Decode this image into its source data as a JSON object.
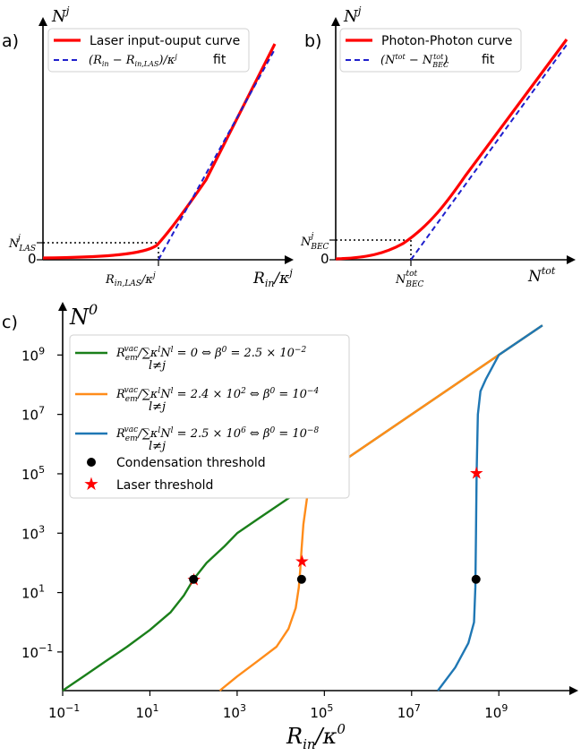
{
  "colors": {
    "red": "#ff0000",
    "blue": "#1f1fcc",
    "green": "#1a7f1a",
    "orange": "#ff8c1a",
    "steel": "#1f77b4",
    "black": "#000000"
  },
  "chart_data": [
    {
      "type": "line",
      "panel_label": "a)",
      "ylabel": "N^j",
      "xlabel": "R_in/κ^j",
      "x_tick_labels": [
        "R_in,LAS/κ^j"
      ],
      "y_tick_labels": [
        "0",
        "N^j_LAS"
      ],
      "legend_placement": "top-left",
      "series": [
        {
          "name": "Laser input-ouput curve",
          "style": "solid",
          "color": "red"
        },
        {
          "name": "(R_in − R_in,LAS)/κ^j fit",
          "style": "dashed",
          "color": "blue"
        }
      ]
    },
    {
      "type": "line",
      "panel_label": "b)",
      "ylabel": "N^j",
      "xlabel": "N^tot",
      "x_tick_labels": [
        "N^tot_BEC"
      ],
      "y_tick_labels": [
        "0",
        "N^j_BEC"
      ],
      "legend_placement": "top-left",
      "series": [
        {
          "name": "Photon-Photon curve",
          "style": "solid",
          "color": "red"
        },
        {
          "name": "(N^tot − N^tot_BEC) fit",
          "style": "dashed",
          "color": "blue"
        }
      ]
    },
    {
      "type": "line",
      "panel_label": "c)",
      "ylabel": "N^0",
      "xlabel": "R_in/κ^0",
      "x_scale": "log",
      "y_scale": "log",
      "xlim": [
        0.1,
        50000000000.0
      ],
      "ylim": [
        0.005,
        50000000000.0
      ],
      "x_ticks": [
        {
          "base": "10",
          "exp": "−1",
          "value": 0.1
        },
        {
          "base": "10",
          "exp": "1",
          "value": 10
        },
        {
          "base": "10",
          "exp": "3",
          "value": 1000
        },
        {
          "base": "10",
          "exp": "5",
          "value": 100000
        },
        {
          "base": "10",
          "exp": "7",
          "value": 10000000
        },
        {
          "base": "10",
          "exp": "9",
          "value": 1000000000
        }
      ],
      "y_ticks": [
        {
          "base": "10",
          "exp": "−1",
          "value": 0.1
        },
        {
          "base": "10",
          "exp": "1",
          "value": 10
        },
        {
          "base": "10",
          "exp": "3",
          "value": 1000
        },
        {
          "base": "10",
          "exp": "5",
          "value": 100000
        },
        {
          "base": "10",
          "exp": "7",
          "value": 10000000
        },
        {
          "base": "10",
          "exp": "9",
          "value": 1000000000
        }
      ],
      "legend_placement": "top-left",
      "series": [
        {
          "name": "R^vac_em/Σ_{l≠j} κ^l N^l = 0 ⇔ β^0 = 2.5×10^−2",
          "color": "green",
          "beta": 0.025,
          "x": [
            0.1,
            0.3,
            1,
            3,
            10,
            30,
            60,
            100,
            200,
            500,
            1000,
            3000,
            10000,
            100000,
            1000000,
            10000000,
            100000000,
            1000000000,
            10000000000
          ],
          "y": [
            0.005,
            0.015,
            0.05,
            0.15,
            0.55,
            2.2,
            8,
            28,
            100,
            350,
            1000,
            3000,
            10000,
            100000,
            1000000,
            10000000,
            100000000,
            1000000000,
            10000000000
          ]
        },
        {
          "name": "R^vac_em/Σ_{l≠j} κ^l N^l = 2.4×10^2 ⇔ β^0 = 10^−4",
          "color": "orange",
          "beta": 0.0001,
          "x": [
            400,
            1000,
            3000,
            8000,
            15000,
            22000,
            26000,
            28000,
            30000,
            33000,
            40000,
            60000,
            100000,
            1000000,
            10000000,
            100000000,
            1000000000,
            10000000000
          ],
          "y": [
            0.005,
            0.015,
            0.05,
            0.15,
            0.6,
            3,
            15,
            60,
            300,
            2000,
            15000,
            60000,
            100000,
            1000000,
            10000000,
            100000000,
            1000000000,
            10000000000
          ]
        },
        {
          "name": "R^vac_em/Σ_{l≠j} κ^l N^l = 2.5×10^6 ⇔ β^0 = 10^−8",
          "color": "steel",
          "beta": 1e-08,
          "x": [
            40000000,
            100000000,
            200000000,
            270000000,
            290000000,
            300000000,
            310000000,
            330000000,
            380000000,
            500000000,
            1000000000,
            10000000000
          ],
          "y": [
            0.005,
            0.03,
            0.2,
            1,
            15,
            1000,
            100000,
            10000000,
            60000000,
            150000000,
            1000000000,
            10000000000
          ]
        }
      ],
      "markers": {
        "condensation_label": "Condensation threshold",
        "laser_label": "Laser threshold",
        "condensation_points": [
          {
            "x": 100,
            "y": 28
          },
          {
            "x": 30000,
            "y": 28
          },
          {
            "x": 300000000,
            "y": 28
          }
        ],
        "laser_points": [
          {
            "x": 100,
            "y": 28
          },
          {
            "x": 30000,
            "y": 120
          },
          {
            "x": 300000000,
            "y": 110000
          }
        ]
      }
    }
  ],
  "text": {
    "panel_a": "a)",
    "panel_b": "b)",
    "panel_c": "c)",
    "a_legend_1": "Laser input-ouput curve",
    "a_legend_2": "fit",
    "b_legend_1": "Photon-Photon curve",
    "b_legend_2": "fit",
    "c_legend_cond": "Condensation threshold",
    "c_legend_laser": "Laser threshold",
    "a_zero": "0",
    "b_zero": "0"
  }
}
